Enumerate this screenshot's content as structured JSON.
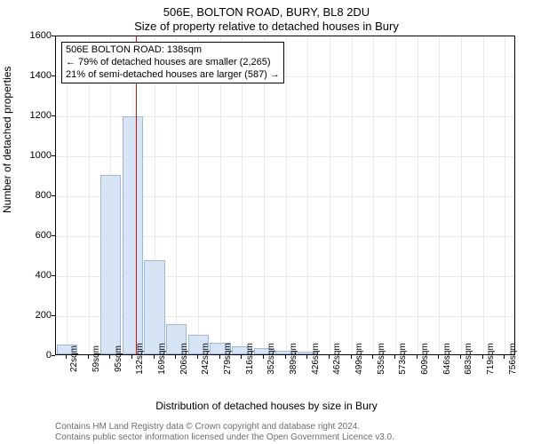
{
  "title_line1": "506E, BOLTON ROAD, BURY, BL8 2DU",
  "title_line2": "Size of property relative to detached houses in Bury",
  "ylabel": "Number of detached properties",
  "xlabel": "Distribution of detached houses by size in Bury",
  "footer1": "Contains HM Land Registry data © Crown copyright and database right 2024.",
  "footer2": "Contains public sector information licensed under the Open Government Licence v3.0.",
  "chart": {
    "ylim": [
      0,
      1600
    ],
    "ytick_step": 200,
    "x_categories": [
      "22sqm",
      "59sqm",
      "95sqm",
      "132sqm",
      "169sqm",
      "206sqm",
      "242sqm",
      "279sqm",
      "316sqm",
      "352sqm",
      "389sqm",
      "426sqm",
      "462sqm",
      "499sqm",
      "535sqm",
      "573sqm",
      "609sqm",
      "646sqm",
      "683sqm",
      "719sqm",
      "756sqm"
    ],
    "values": [
      50,
      0,
      900,
      1190,
      470,
      150,
      100,
      60,
      40,
      30,
      20,
      15,
      0,
      0,
      0,
      0,
      0,
      0,
      0,
      0,
      0
    ],
    "bar_fill": "#d6e4f5",
    "bar_stroke": "#9cb8dc",
    "grid_color": "#eaeaea",
    "refline_color": "#ff0000",
    "refline_x_sqm": 138,
    "plot_border": "#000000",
    "background": "#ffffff"
  },
  "annotation": {
    "line1": "506E BOLTON ROAD: 138sqm",
    "line2": "← 79% of detached houses are smaller (2,265)",
    "line3": "21% of semi-detached houses are larger (587) →"
  }
}
